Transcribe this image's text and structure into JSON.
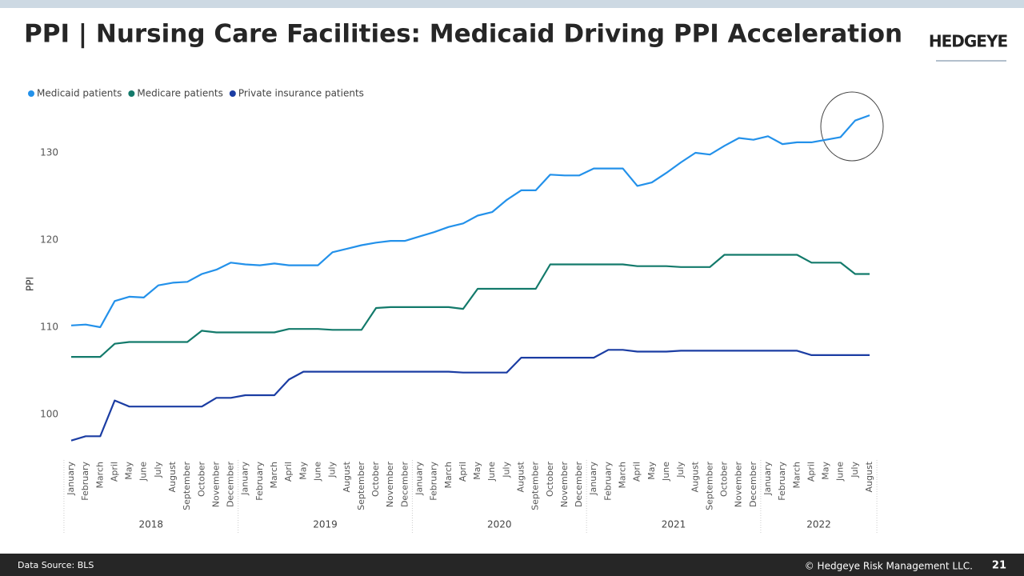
{
  "chart_data": {
    "type": "line",
    "title": "PPI | Nursing Care Facilities: Medicaid Driving PPI Acceleration",
    "y_label": "PPI",
    "categories": [
      "January",
      "February",
      "March",
      "April",
      "May",
      "June",
      "July",
      "August",
      "September",
      "October",
      "November",
      "December",
      "January",
      "February",
      "March",
      "April",
      "May",
      "June",
      "July",
      "August",
      "September",
      "October",
      "November",
      "December",
      "January",
      "February",
      "March",
      "April",
      "May",
      "June",
      "July",
      "August",
      "September",
      "October",
      "November",
      "December",
      "January",
      "February",
      "March",
      "April",
      "May",
      "June",
      "July",
      "August",
      "September",
      "October",
      "November",
      "December",
      "January",
      "February",
      "March",
      "April",
      "May",
      "June",
      "July",
      "August"
    ],
    "x_groups": [
      "2018",
      "2019",
      "2020",
      "2021",
      "2022"
    ],
    "series": [
      {
        "name": "Medicaid patients",
        "color": "#2391ea",
        "values": [
          110.2,
          110.3,
          110.0,
          113.0,
          113.5,
          113.4,
          114.8,
          115.1,
          115.2,
          116.1,
          116.6,
          117.4,
          117.2,
          117.1,
          117.3,
          117.1,
          117.1,
          117.1,
          118.6,
          119.0,
          119.4,
          119.7,
          119.9,
          119.9,
          120.4,
          120.9,
          121.5,
          121.9,
          122.8,
          123.2,
          124.6,
          125.7,
          125.7,
          127.5,
          127.4,
          127.4,
          128.2,
          128.2,
          128.2,
          126.2,
          126.6,
          127.7,
          128.9,
          130.0,
          129.8,
          130.8,
          131.7,
          131.5,
          131.9,
          131.0,
          131.2,
          131.2,
          131.5,
          131.8,
          133.7,
          134.3
        ]
      },
      {
        "name": "Medicare patients",
        "color": "#137a6b",
        "values": [
          106.6,
          106.6,
          106.6,
          108.1,
          108.3,
          108.3,
          108.3,
          108.3,
          108.3,
          109.6,
          109.4,
          109.4,
          109.4,
          109.4,
          109.4,
          109.8,
          109.8,
          109.8,
          109.7,
          109.7,
          109.7,
          112.2,
          112.3,
          112.3,
          112.3,
          112.3,
          112.3,
          112.1,
          114.4,
          114.4,
          114.4,
          114.4,
          114.4,
          117.2,
          117.2,
          117.2,
          117.2,
          117.2,
          117.2,
          117.0,
          117.0,
          117.0,
          116.9,
          116.9,
          116.9,
          118.3,
          118.3,
          118.3,
          118.3,
          118.3,
          118.3,
          117.4,
          117.4,
          117.4,
          116.1,
          116.1
        ]
      },
      {
        "name": "Private insurance patients",
        "color": "#1b3da3",
        "values": [
          97.0,
          97.5,
          97.5,
          101.6,
          100.9,
          100.9,
          100.9,
          100.9,
          100.9,
          100.9,
          101.9,
          101.9,
          102.2,
          102.2,
          102.2,
          104.0,
          104.9,
          104.9,
          104.9,
          104.9,
          104.9,
          104.9,
          104.9,
          104.9,
          104.9,
          104.9,
          104.9,
          104.8,
          104.8,
          104.8,
          104.8,
          106.5,
          106.5,
          106.5,
          106.5,
          106.5,
          106.5,
          107.4,
          107.4,
          107.2,
          107.2,
          107.2,
          107.3,
          107.3,
          107.3,
          107.3,
          107.3,
          107.3,
          107.3,
          107.3,
          107.3,
          106.8,
          106.8,
          106.8,
          106.8,
          106.8
        ]
      }
    ],
    "ylim": [
      95,
      135
    ],
    "yticks": [
      100,
      110,
      120,
      130
    ],
    "grid": false,
    "legend": "top-left"
  },
  "header": {
    "logo": "HEDGEYE"
  },
  "footer": {
    "source": "Data Source: BLS",
    "copyright": "© Hedgeye Risk Management LLC.",
    "page": "21"
  }
}
